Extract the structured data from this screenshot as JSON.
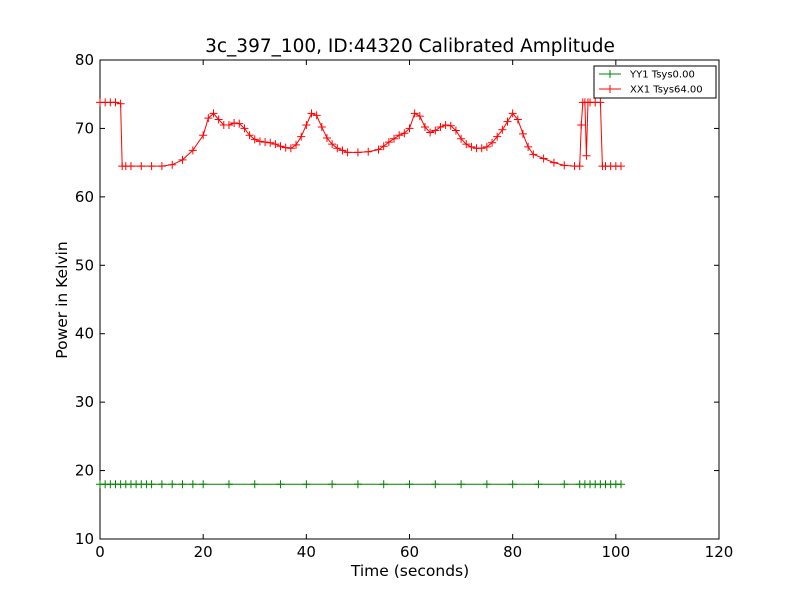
{
  "chart_data": {
    "type": "line",
    "title": "3c_397_100, ID:44320 Calibrated Amplitude",
    "xlabel": "Time (seconds)",
    "ylabel": "Power in Kelvin",
    "xlim": [
      0,
      120
    ],
    "ylim": [
      10,
      80
    ],
    "xticks": [
      0,
      20,
      40,
      60,
      80,
      100,
      120
    ],
    "yticks": [
      10,
      20,
      30,
      40,
      50,
      60,
      70,
      80
    ],
    "grid": false,
    "legend_position": "top-right",
    "marker": "+",
    "series": [
      {
        "name": "YY1 Tsys0.00",
        "color": "#008000",
        "x": [
          0,
          1,
          2,
          3,
          4,
          5,
          6,
          7,
          8,
          9,
          10,
          12,
          14,
          16,
          18,
          20,
          25,
          30,
          35,
          40,
          45,
          50,
          55,
          60,
          65,
          70,
          75,
          80,
          85,
          90,
          93,
          94,
          95,
          96,
          97,
          98,
          99,
          100,
          101
        ],
        "y": [
          18,
          18,
          18,
          18,
          18,
          18,
          18,
          18,
          18,
          18,
          18,
          18,
          18,
          18,
          18,
          18,
          18,
          18,
          18,
          18,
          18,
          18,
          18,
          18,
          18,
          18,
          18,
          18,
          18,
          18,
          18,
          18,
          18,
          18,
          18,
          18,
          18,
          18,
          18
        ]
      },
      {
        "name": "XX1 Tsys64.00",
        "color": "#ff0000",
        "x": [
          0,
          1,
          2,
          3,
          4,
          4.3,
          5,
          6,
          8,
          10,
          12,
          14,
          16,
          18,
          20,
          21,
          22,
          23,
          24,
          25,
          26,
          27,
          28,
          29,
          30,
          31,
          32,
          33,
          34,
          35,
          36,
          37,
          38,
          39,
          40,
          41,
          42,
          43,
          44,
          45,
          46,
          47,
          48,
          50,
          52,
          54,
          55,
          56,
          57,
          58,
          59,
          60,
          61,
          62,
          63,
          64,
          65,
          66,
          67,
          68,
          69,
          70,
          71,
          72,
          73,
          74,
          75,
          76,
          77,
          78,
          79,
          80,
          81,
          82,
          83,
          84,
          86,
          88,
          90,
          92,
          93,
          93.3,
          93.6,
          94,
          94.3,
          94.6,
          95,
          96,
          97,
          97.4,
          98,
          99,
          100,
          101
        ],
        "y": [
          73.8,
          73.8,
          73.8,
          73.8,
          73.6,
          64.5,
          64.5,
          64.5,
          64.5,
          64.5,
          64.5,
          64.7,
          65.4,
          66.8,
          69,
          71.5,
          72.2,
          71.3,
          70.5,
          70.5,
          70.8,
          70.7,
          70,
          69,
          68.4,
          68.1,
          68,
          67.9,
          67.7,
          67.4,
          67.2,
          67.1,
          67.6,
          68.8,
          70.5,
          72.2,
          71.9,
          70.2,
          68.6,
          67.7,
          67.1,
          66.8,
          66.5,
          66.5,
          66.6,
          66.9,
          67.4,
          68,
          68.5,
          69,
          69.3,
          70,
          72.2,
          71.8,
          70.2,
          69.4,
          69.7,
          70.2,
          70.5,
          70.4,
          69.7,
          68.5,
          67.7,
          67.3,
          67.1,
          67.1,
          67.3,
          67.9,
          68.8,
          69.8,
          71,
          72.2,
          71.3,
          69.2,
          67.3,
          66.2,
          65.6,
          65,
          64.6,
          64.5,
          64.5,
          70.5,
          73.8,
          73.8,
          66,
          73.8,
          73.8,
          73.8,
          73.8,
          64.5,
          64.5,
          64.5,
          64.5,
          64.5
        ]
      }
    ]
  }
}
